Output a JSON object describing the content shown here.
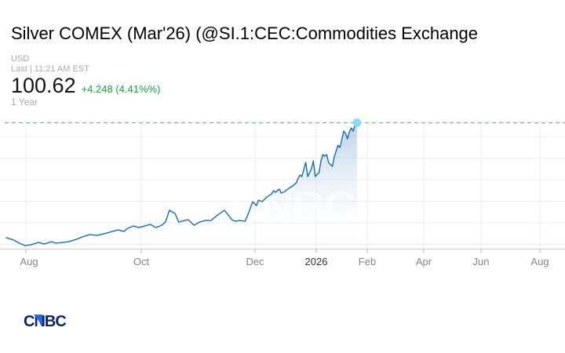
{
  "header": {
    "title": "Silver COMEX (Mar'26) (@SI.1:CEC:Commodities Exchange",
    "currency_label": "USD",
    "last_label": "Last | 11:21 AM EST",
    "price": "100.62",
    "change": "+4.248 (4.41%%)",
    "range_label": "1 Year"
  },
  "branding": {
    "logo_text": "CNBC",
    "watermark_text": "CNBC"
  },
  "colors": {
    "price_line": "#1a6cae",
    "area_fill_top": "#86aed8",
    "last_price_dash": "#7cb87c",
    "marker_dot": "#8ed9f6",
    "change_green": "#17a03d",
    "logo_navy": "#0b2265",
    "logo_triangle_blue": "#1d6bf0",
    "axis_label_gray": "#868686",
    "axis_label_year": "#2f2f2f"
  },
  "chart_data": {
    "type": "area",
    "title": "Silver COMEX (Mar'26) (@SI.1:CEC:Commodities Exchange",
    "xlabel": "",
    "ylabel": "USD",
    "x_ticks": [
      "Aug",
      "Oct",
      "Dec",
      "2026",
      "Feb",
      "Apr",
      "Jun",
      "Aug"
    ],
    "ylim": [
      36,
      106
    ],
    "grid": true,
    "legend": false,
    "last_price": 100.62,
    "change_abs": 4.248,
    "change_pct": 4.41,
    "series_name": "@SI.1",
    "points": [
      [
        "2025-07-22",
        42.0
      ],
      [
        "2025-07-26",
        40.8
      ],
      [
        "2025-07-29",
        39.2
      ],
      [
        "2025-08-01",
        38.0
      ],
      [
        "2025-08-04",
        38.4
      ],
      [
        "2025-08-08",
        39.6
      ],
      [
        "2025-08-11",
        38.8
      ],
      [
        "2025-08-15",
        40.0
      ],
      [
        "2025-08-17",
        39.2
      ],
      [
        "2025-08-21",
        39.6
      ],
      [
        "2025-08-24",
        40.0
      ],
      [
        "2025-08-28",
        41.2
      ],
      [
        "2025-08-31",
        42.4
      ],
      [
        "2025-09-04",
        43.6
      ],
      [
        "2025-09-08",
        43.2
      ],
      [
        "2025-09-13",
        44.4
      ],
      [
        "2025-09-16",
        45.2
      ],
      [
        "2025-09-19",
        46.0
      ],
      [
        "2025-09-22",
        45.2
      ],
      [
        "2025-09-24",
        46.8
      ],
      [
        "2025-09-27",
        48.0
      ],
      [
        "2025-09-30",
        47.2
      ],
      [
        "2025-10-03",
        48.0
      ],
      [
        "2025-10-06",
        48.8
      ],
      [
        "2025-10-09",
        47.2
      ],
      [
        "2025-10-12",
        48.4
      ],
      [
        "2025-10-14",
        50.0
      ],
      [
        "2025-10-16",
        56.0
      ],
      [
        "2025-10-19",
        54.4
      ],
      [
        "2025-10-21",
        50.0
      ],
      [
        "2025-10-24",
        50.8
      ],
      [
        "2025-10-26",
        51.2
      ],
      [
        "2025-10-29",
        48.4
      ],
      [
        "2025-11-01",
        50.0
      ],
      [
        "2025-11-04",
        50.8
      ],
      [
        "2025-11-07",
        50.8
      ],
      [
        "2025-11-10",
        53.2
      ],
      [
        "2025-11-14",
        56.0
      ],
      [
        "2025-11-16",
        53.8
      ],
      [
        "2025-11-18",
        51.2
      ],
      [
        "2025-11-20",
        50.4
      ],
      [
        "2025-11-22",
        50.8
      ],
      [
        "2025-11-25",
        50.4
      ],
      [
        "2025-11-27",
        55.2
      ],
      [
        "2025-11-29",
        60.4
      ],
      [
        "2025-12-01",
        58.4
      ],
      [
        "2025-12-02",
        61.2
      ],
      [
        "2025-12-04",
        60.4
      ],
      [
        "2025-12-06",
        62.4
      ],
      [
        "2025-12-09",
        64.4
      ],
      [
        "2025-12-10",
        66.0
      ],
      [
        "2025-12-11",
        65.2
      ],
      [
        "2025-12-13",
        66.8
      ],
      [
        "2025-12-14",
        64.8
      ],
      [
        "2025-12-16",
        65.6
      ],
      [
        "2025-12-18",
        67.2
      ],
      [
        "2025-12-20",
        68.4
      ],
      [
        "2025-12-22",
        70.0
      ],
      [
        "2025-12-23",
        72.4
      ],
      [
        "2025-12-24",
        74.0
      ],
      [
        "2025-12-25",
        73.2
      ],
      [
        "2025-12-26",
        77.2
      ],
      [
        "2025-12-27",
        80.4
      ],
      [
        "2025-12-28",
        73.2
      ],
      [
        "2025-12-30",
        77.2
      ],
      [
        "2025-12-31",
        81.2
      ],
      [
        "2026-01-01",
        73.2
      ],
      [
        "2026-01-02",
        74.4
      ],
      [
        "2026-01-03",
        75.2
      ],
      [
        "2026-01-04",
        81.2
      ],
      [
        "2026-01-05",
        84.4
      ],
      [
        "2026-01-06",
        83.6
      ],
      [
        "2026-01-07",
        84.4
      ],
      [
        "2026-01-08",
        80.4
      ],
      [
        "2026-01-10",
        78.4
      ],
      [
        "2026-01-11",
        83.2
      ],
      [
        "2026-01-13",
        89.2
      ],
      [
        "2026-01-14",
        88.0
      ],
      [
        "2026-01-16",
        96.4
      ],
      [
        "2026-01-17",
        95.2
      ],
      [
        "2026-01-18",
        92.4
      ],
      [
        "2026-01-19",
        96.0
      ],
      [
        "2026-01-20",
        98.0
      ],
      [
        "2026-01-21",
        96.4
      ],
      [
        "2026-01-22",
        100.0
      ],
      [
        "2026-01-23",
        100.62
      ]
    ]
  }
}
